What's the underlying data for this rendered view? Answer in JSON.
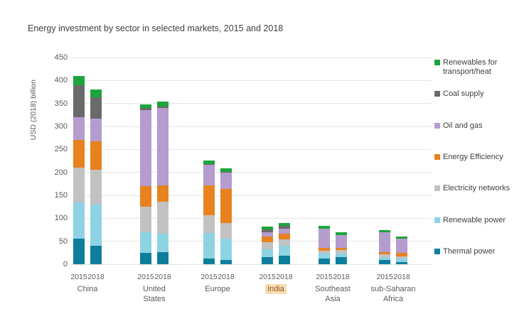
{
  "title": "Energy investment by sector in selected markets, 2015 and 2018",
  "y_axis": {
    "label": "USD (2018) billion"
  },
  "x_axis": {
    "years": [
      "2015",
      "2018"
    ],
    "groups": [
      {
        "label": "China",
        "highlighted": false
      },
      {
        "label": "United States",
        "highlighted": false
      },
      {
        "label": "Europe",
        "highlighted": false
      },
      {
        "label": "India",
        "highlighted": true
      },
      {
        "label": "Southeast Asia",
        "highlighted": false
      },
      {
        "label": "sub-Saharan Africa",
        "highlighted": false
      }
    ],
    "highlight_style": {
      "background": "#f8dcb2",
      "text_color": "#96591f"
    }
  },
  "legend": [
    {
      "label": "Renewables for transport/heat",
      "color": "#1ca53c"
    },
    {
      "label": "Coal supply",
      "color": "#6a6a6a"
    },
    {
      "label": "Oil and gas",
      "color": "#b49cce"
    },
    {
      "label": "Energy Efficiency",
      "color": "#e8821e"
    },
    {
      "label": "Electricity networks",
      "color": "#c2c2c2"
    },
    {
      "label": "Renewable power",
      "color": "#8ed3e3"
    },
    {
      "label": "Thermal power",
      "color": "#0f7e9e"
    }
  ],
  "chart_data": {
    "type": "bar",
    "stacked": true,
    "title": "Energy investment by sector in selected markets, 2015 and 2018",
    "xlabel": "",
    "ylabel": "USD (2018) billion",
    "ylim": [
      0,
      450
    ],
    "y_tick_step": 50,
    "grid": "horizontal",
    "legend_position": "right",
    "categories": [
      "China 2015",
      "China 2018",
      "United States 2015",
      "United States 2018",
      "Europe 2015",
      "Europe 2018",
      "India 2015",
      "India 2018",
      "Southeast Asia 2015",
      "Southeast Asia 2018",
      "sub-Saharan Africa 2015",
      "sub-Saharan Africa 2018"
    ],
    "series": [
      {
        "name": "Thermal power",
        "color": "#0f7e9e",
        "values": [
          55,
          40,
          25,
          26,
          13,
          10,
          15,
          18,
          13,
          15,
          9,
          4
        ]
      },
      {
        "name": "Renewable power",
        "color": "#8ed3e3",
        "values": [
          80,
          90,
          45,
          40,
          55,
          45,
          18,
          23,
          10,
          8,
          7,
          8
        ]
      },
      {
        "name": "Electricity networks",
        "color": "#c2c2c2",
        "values": [
          75,
          75,
          55,
          70,
          39,
          34,
          15,
          13,
          6,
          8,
          5,
          5
        ]
      },
      {
        "name": "Energy Efficiency",
        "color": "#e8821e",
        "values": [
          60,
          62,
          45,
          35,
          64,
          75,
          13,
          13,
          6,
          4,
          5,
          8
        ]
      },
      {
        "name": "Oil and gas",
        "color": "#b49cce",
        "values": [
          50,
          50,
          165,
          170,
          45,
          35,
          8,
          10,
          42,
          28,
          43,
          30
        ]
      },
      {
        "name": "Coal supply",
        "color": "#6a6a6a",
        "values": [
          70,
          46,
          5,
          3,
          2,
          2,
          7,
          7,
          1,
          1,
          0,
          0
        ]
      },
      {
        "name": "Renewables for transport/heat",
        "color": "#1ca53c",
        "values": [
          20,
          18,
          8,
          10,
          8,
          8,
          6,
          6,
          6,
          6,
          6,
          6
        ]
      }
    ]
  }
}
